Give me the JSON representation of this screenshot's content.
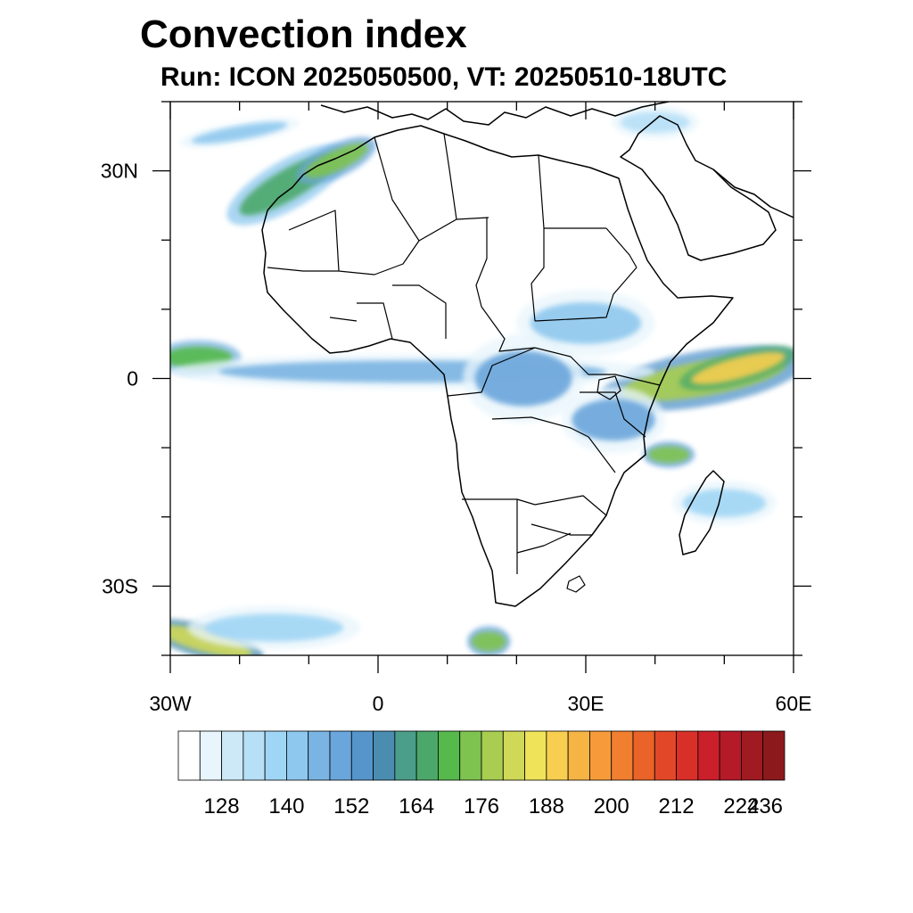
{
  "title": "Convection index",
  "subtitle": "Run: ICON 2025050500,  VT: 20250510-18UTC",
  "map": {
    "lon_range": [
      -30,
      60
    ],
    "lat_range": [
      -40,
      40
    ],
    "x_ticks": [
      {
        "lon": -30,
        "label": "30W"
      },
      {
        "lon": 0,
        "label": "0"
      },
      {
        "lon": 30,
        "label": "30E"
      },
      {
        "lon": 60,
        "label": "60E"
      }
    ],
    "y_ticks": [
      {
        "lat": 30,
        "label": "30N"
      },
      {
        "lat": 0,
        "label": "0"
      },
      {
        "lat": -30,
        "label": "30S"
      }
    ],
    "minor_lon_step": 10,
    "minor_lat_step": 10
  },
  "colorbar": {
    "colors": [
      "#ffffff",
      "#e8f5fc",
      "#cde9f8",
      "#b7e0f7",
      "#a0d6f5",
      "#8ec8ee",
      "#7ab4e2",
      "#6aa6db",
      "#5595cb",
      "#4a8db0",
      "#4a9e8a",
      "#4ba86a",
      "#55b94c",
      "#7ec24f",
      "#a8cd50",
      "#cfd857",
      "#efe35a",
      "#f7ce50",
      "#f6b444",
      "#f69a3a",
      "#f07f30",
      "#ea6328",
      "#e24827",
      "#d83028",
      "#c9202b",
      "#b51a28",
      "#a01a22",
      "#8c1a1c"
    ],
    "labels": [
      {
        "after_box": 2,
        "text": "128"
      },
      {
        "after_box": 5,
        "text": "140"
      },
      {
        "after_box": 8,
        "text": "152"
      },
      {
        "after_box": 11,
        "text": "164"
      },
      {
        "after_box": 14,
        "text": "176"
      },
      {
        "after_box": 17,
        "text": "188"
      },
      {
        "after_box": 20,
        "text": "200"
      },
      {
        "after_box": 23,
        "text": "212"
      },
      {
        "after_box": 26,
        "text": "224"
      },
      {
        "after_box": 29,
        "text": "236"
      }
    ]
  },
  "convection_areas": [
    {
      "lon": -13,
      "lat": 28,
      "rx": 8,
      "ry": 2.2,
      "rot": -30,
      "level": 11
    },
    {
      "lon": -6,
      "lat": 31.5,
      "rx": 5,
      "ry": 1.5,
      "rot": -25,
      "level": 13
    },
    {
      "lon": 47,
      "lat": 0,
      "rx": 12,
      "ry": 2.5,
      "rot": -10,
      "level": 14
    },
    {
      "lon": 52,
      "lat": 1.5,
      "rx": 7,
      "ry": 1.5,
      "rot": -15,
      "level": 17
    },
    {
      "lon": 42,
      "lat": -11,
      "rx": 3,
      "ry": 1.2,
      "rot": 0,
      "level": 13
    },
    {
      "lon": -26,
      "lat": 3,
      "rx": 5,
      "ry": 1.6,
      "rot": 0,
      "level": 12
    },
    {
      "lon": -25,
      "lat": -38,
      "rx": 7,
      "ry": 1.5,
      "rot": 15,
      "level": 15
    },
    {
      "lon": 16,
      "lat": -38,
      "rx": 2.5,
      "ry": 1.4,
      "rot": 0,
      "level": 13
    },
    {
      "lon": 5,
      "lat": 1,
      "rx": 28,
      "ry": 1.6,
      "rot": 0,
      "level": 6
    },
    {
      "lon": 21,
      "lat": 0,
      "rx": 7,
      "ry": 4,
      "rot": 0,
      "level": 7
    },
    {
      "lon": 34,
      "lat": -6,
      "rx": 6,
      "ry": 3,
      "rot": 0,
      "level": 7
    },
    {
      "lon": 30,
      "lat": 8,
      "rx": 8,
      "ry": 3,
      "rot": 0,
      "level": 5
    },
    {
      "lon": 50,
      "lat": -18,
      "rx": 6,
      "ry": 2,
      "rot": 0,
      "level": 4
    },
    {
      "lon": -20,
      "lat": 35.5,
      "rx": 7,
      "ry": 1,
      "rot": -10,
      "level": 5
    },
    {
      "lon": -15,
      "lat": -36,
      "rx": 10,
      "ry": 2,
      "rot": 0,
      "level": 4
    },
    {
      "lon": 40,
      "lat": 37,
      "rx": 5,
      "ry": 1.5,
      "rot": 0,
      "level": 3
    }
  ]
}
